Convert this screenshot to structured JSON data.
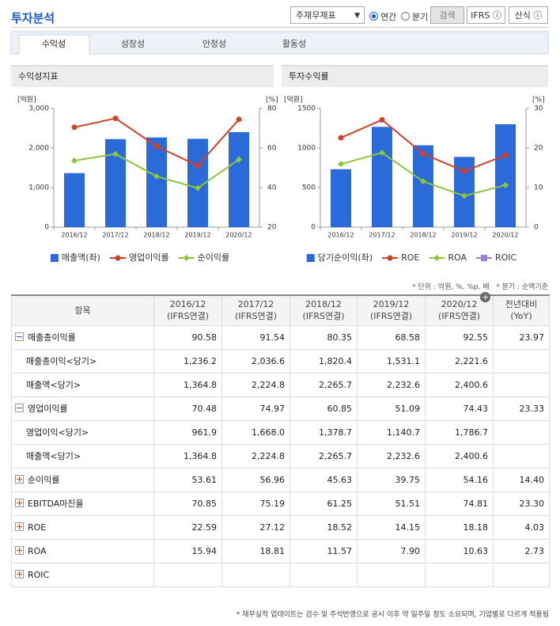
{
  "header": {
    "title": "투자분석",
    "select": "주재무제표",
    "radio_annual": "연간",
    "radio_quarter": "분기",
    "search": "검색",
    "ifrs": "IFRS",
    "formula": "산식"
  },
  "tabs": [
    "수익성",
    "성장성",
    "안정성",
    "활동성"
  ],
  "chart_data": [
    {
      "type": "combo",
      "title": "수익성지표",
      "y_label": "[억원]",
      "y2_label": "[%]",
      "categories": [
        "2016/12",
        "2017/12",
        "2018/12",
        "2019/12",
        "2020/12"
      ],
      "series": [
        {
          "name": "매출액(좌)",
          "type": "bar",
          "color": "#2b6ad9",
          "values": [
            1364.8,
            2224.8,
            2265.7,
            2232.6,
            2400.6
          ]
        },
        {
          "name": "영업이익률",
          "type": "line",
          "marker": "circle",
          "axis": "y2",
          "color": "#d2402a",
          "values": [
            70.48,
            74.97,
            60.85,
            51.09,
            74.43
          ]
        },
        {
          "name": "순이익률",
          "type": "line",
          "marker": "diamond",
          "axis": "y2",
          "color": "#8cc63e",
          "values": [
            53.61,
            56.96,
            45.63,
            39.75,
            54.16
          ]
        }
      ],
      "ylim": [
        0,
        3000
      ],
      "yticks": [
        0,
        {
          "value": 1000,
          "label": "1,000"
        },
        {
          "value": 2000,
          "label": "2,000"
        },
        {
          "value": 3000,
          "label": "3,000"
        }
      ],
      "y2lim": [
        20,
        80
      ],
      "y2ticks": [
        20,
        40,
        60,
        80
      ]
    },
    {
      "type": "combo",
      "title": "투자수익률",
      "y_label": "[억원]",
      "y2_label": "[%]",
      "categories": [
        "2016/12",
        "2017/12",
        "2018/12",
        "2019/12",
        "2020/12"
      ],
      "series": [
        {
          "name": "당기순이익(좌)",
          "type": "bar",
          "color": "#2b6ad9",
          "values": [
            732,
            1267,
            1034,
            887,
            1300
          ]
        },
        {
          "name": "ROE",
          "type": "line",
          "marker": "circle",
          "axis": "y2",
          "color": "#d2402a",
          "values": [
            22.59,
            27.12,
            18.52,
            14.15,
            18.18
          ]
        },
        {
          "name": "ROA",
          "type": "line",
          "marker": "diamond",
          "axis": "y2",
          "color": "#8cc63e",
          "values": [
            15.94,
            18.81,
            11.57,
            7.9,
            10.63
          ]
        },
        {
          "name": "ROIC",
          "type": "line",
          "marker": "square",
          "axis": "y2",
          "color": "#9b80d3",
          "values": [
            null,
            null,
            null,
            null,
            null
          ]
        }
      ],
      "ylim": [
        0,
        1500
      ],
      "yticks": [
        0,
        500,
        1000,
        1500
      ],
      "y2lim": [
        0,
        30
      ],
      "y2ticks": [
        0,
        10,
        20,
        30
      ]
    }
  ],
  "unit_note": "* 단위 : 억원, %, %p, 배",
  "quarter_note": "* 분기 : 순액기준",
  "table": {
    "columns": [
      [
        "항목"
      ],
      [
        "2016/12",
        "(IFRS연결)"
      ],
      [
        "2017/12",
        "(IFRS연결)"
      ],
      [
        "2018/12",
        "(IFRS연결)"
      ],
      [
        "2019/12",
        "(IFRS연결)"
      ],
      [
        "2020/12",
        "(IFRS연결)"
      ],
      [
        "전년대비",
        "(YoY)"
      ]
    ],
    "rows": [
      {
        "name": "매출총이익률",
        "values": [
          "90.58",
          "91.54",
          "80.35",
          "68.58",
          "92.55"
        ],
        "yoy": "23.97",
        "children": [
          {
            "name": "매출총이익<당기>",
            "values": [
              "1,236.2",
              "2,036.6",
              "1,820.4",
              "1,531.1",
              "2,221.6"
            ]
          },
          {
            "name": "매출액<당기>",
            "values": [
              "1,364.8",
              "2,224.8",
              "2,265.7",
              "2,232.6",
              "2,400.6"
            ]
          }
        ]
      },
      {
        "name": "영업이익률",
        "values": [
          "70.48",
          "74.97",
          "60.85",
          "51.09",
          "74.43"
        ],
        "yoy": "23.33",
        "children": [
          {
            "name": "영업이익<당기>",
            "values": [
              "961.9",
              "1,668.0",
              "1,378.7",
              "1,140.7",
              "1,786.7"
            ]
          },
          {
            "name": "매출액<당기>",
            "values": [
              "1,364.8",
              "2,224.8",
              "2,265.7",
              "2,232.6",
              "2,400.6"
            ]
          }
        ]
      },
      {
        "name": "순이익률",
        "values": [
          "53.61",
          "56.96",
          "45.63",
          "39.75",
          "54.16"
        ],
        "yoy": "14.40"
      },
      {
        "name": "EBITDA마진율",
        "values": [
          "70.85",
          "75.19",
          "61.25",
          "51.51",
          "74.81"
        ],
        "yoy": "23.30"
      },
      {
        "name": "ROE",
        "values": [
          "22.59",
          "27.12",
          "18.52",
          "14.15",
          "18.18"
        ],
        "yoy": "4.03"
      },
      {
        "name": "ROA",
        "values": [
          "15.94",
          "18.81",
          "11.57",
          "7.90",
          "10.63"
        ],
        "yoy": "2.73"
      },
      {
        "name": "ROIC",
        "values": [
          null,
          null,
          null,
          null,
          null
        ],
        "yoy": null
      }
    ]
  },
  "footnote": "* 재무실적 업데이트는 검수 및 주석반영으로 공시 이후 약 일주일 정도 소요되며, 기업별로 다르게 적용됨"
}
